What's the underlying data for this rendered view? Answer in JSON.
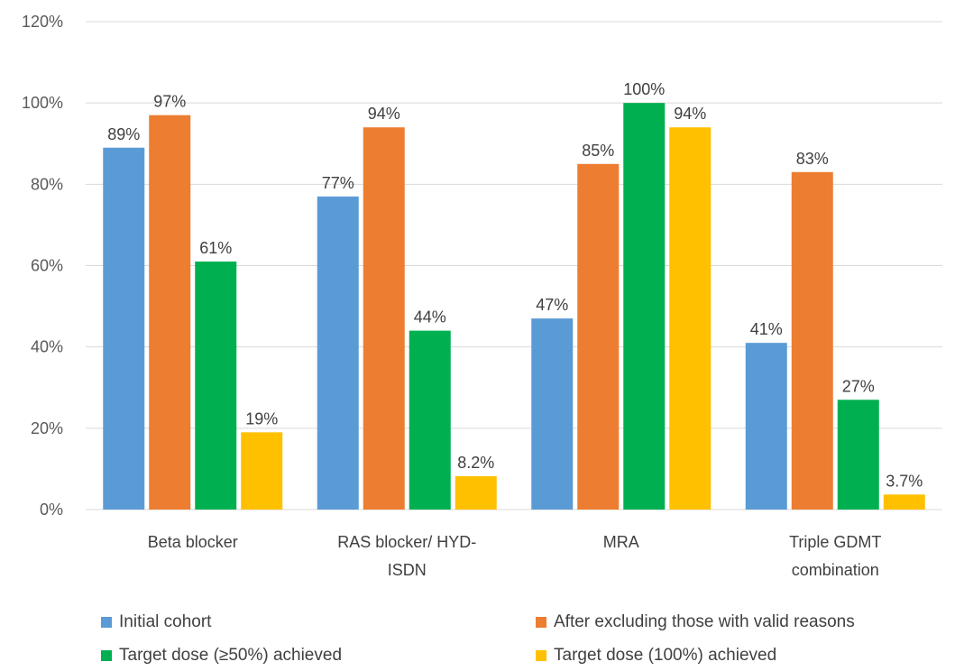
{
  "chart_data": {
    "type": "bar",
    "categories": [
      [
        "Beta blocker"
      ],
      [
        "RAS blocker/ HYD-",
        "ISDN"
      ],
      [
        "MRA"
      ],
      [
        "Triple GDMT",
        "combination"
      ]
    ],
    "ylim": [
      0,
      120
    ],
    "yticks": [
      0,
      20,
      40,
      60,
      80,
      100,
      120
    ],
    "ytick_labels": [
      "0%",
      "20%",
      "40%",
      "60%",
      "80%",
      "100%",
      "120%"
    ],
    "grid": true,
    "legend_position": "bottom",
    "series": [
      {
        "name": "Initial cohort",
        "color": "#5b9bd5",
        "values": [
          89,
          77,
          47,
          41
        ],
        "labels": [
          "89%",
          "77%",
          "47%",
          "41%"
        ]
      },
      {
        "name": "After excluding those with valid reasons",
        "color": "#ed7d31",
        "values": [
          97,
          94,
          85,
          83
        ],
        "labels": [
          "97%",
          "94%",
          "85%",
          "83%"
        ]
      },
      {
        "name": "Target dose (≥50%) achieved",
        "color": "#00b050",
        "values": [
          61,
          44,
          100,
          27
        ],
        "labels": [
          "61%",
          "44%",
          "100%",
          "27%"
        ]
      },
      {
        "name": "Target dose (100%) achieved",
        "color": "#ffc000",
        "values": [
          19,
          8.2,
          94,
          3.7
        ],
        "labels": [
          "19%",
          "8.2%",
          "94%",
          "3.7%"
        ]
      }
    ]
  }
}
